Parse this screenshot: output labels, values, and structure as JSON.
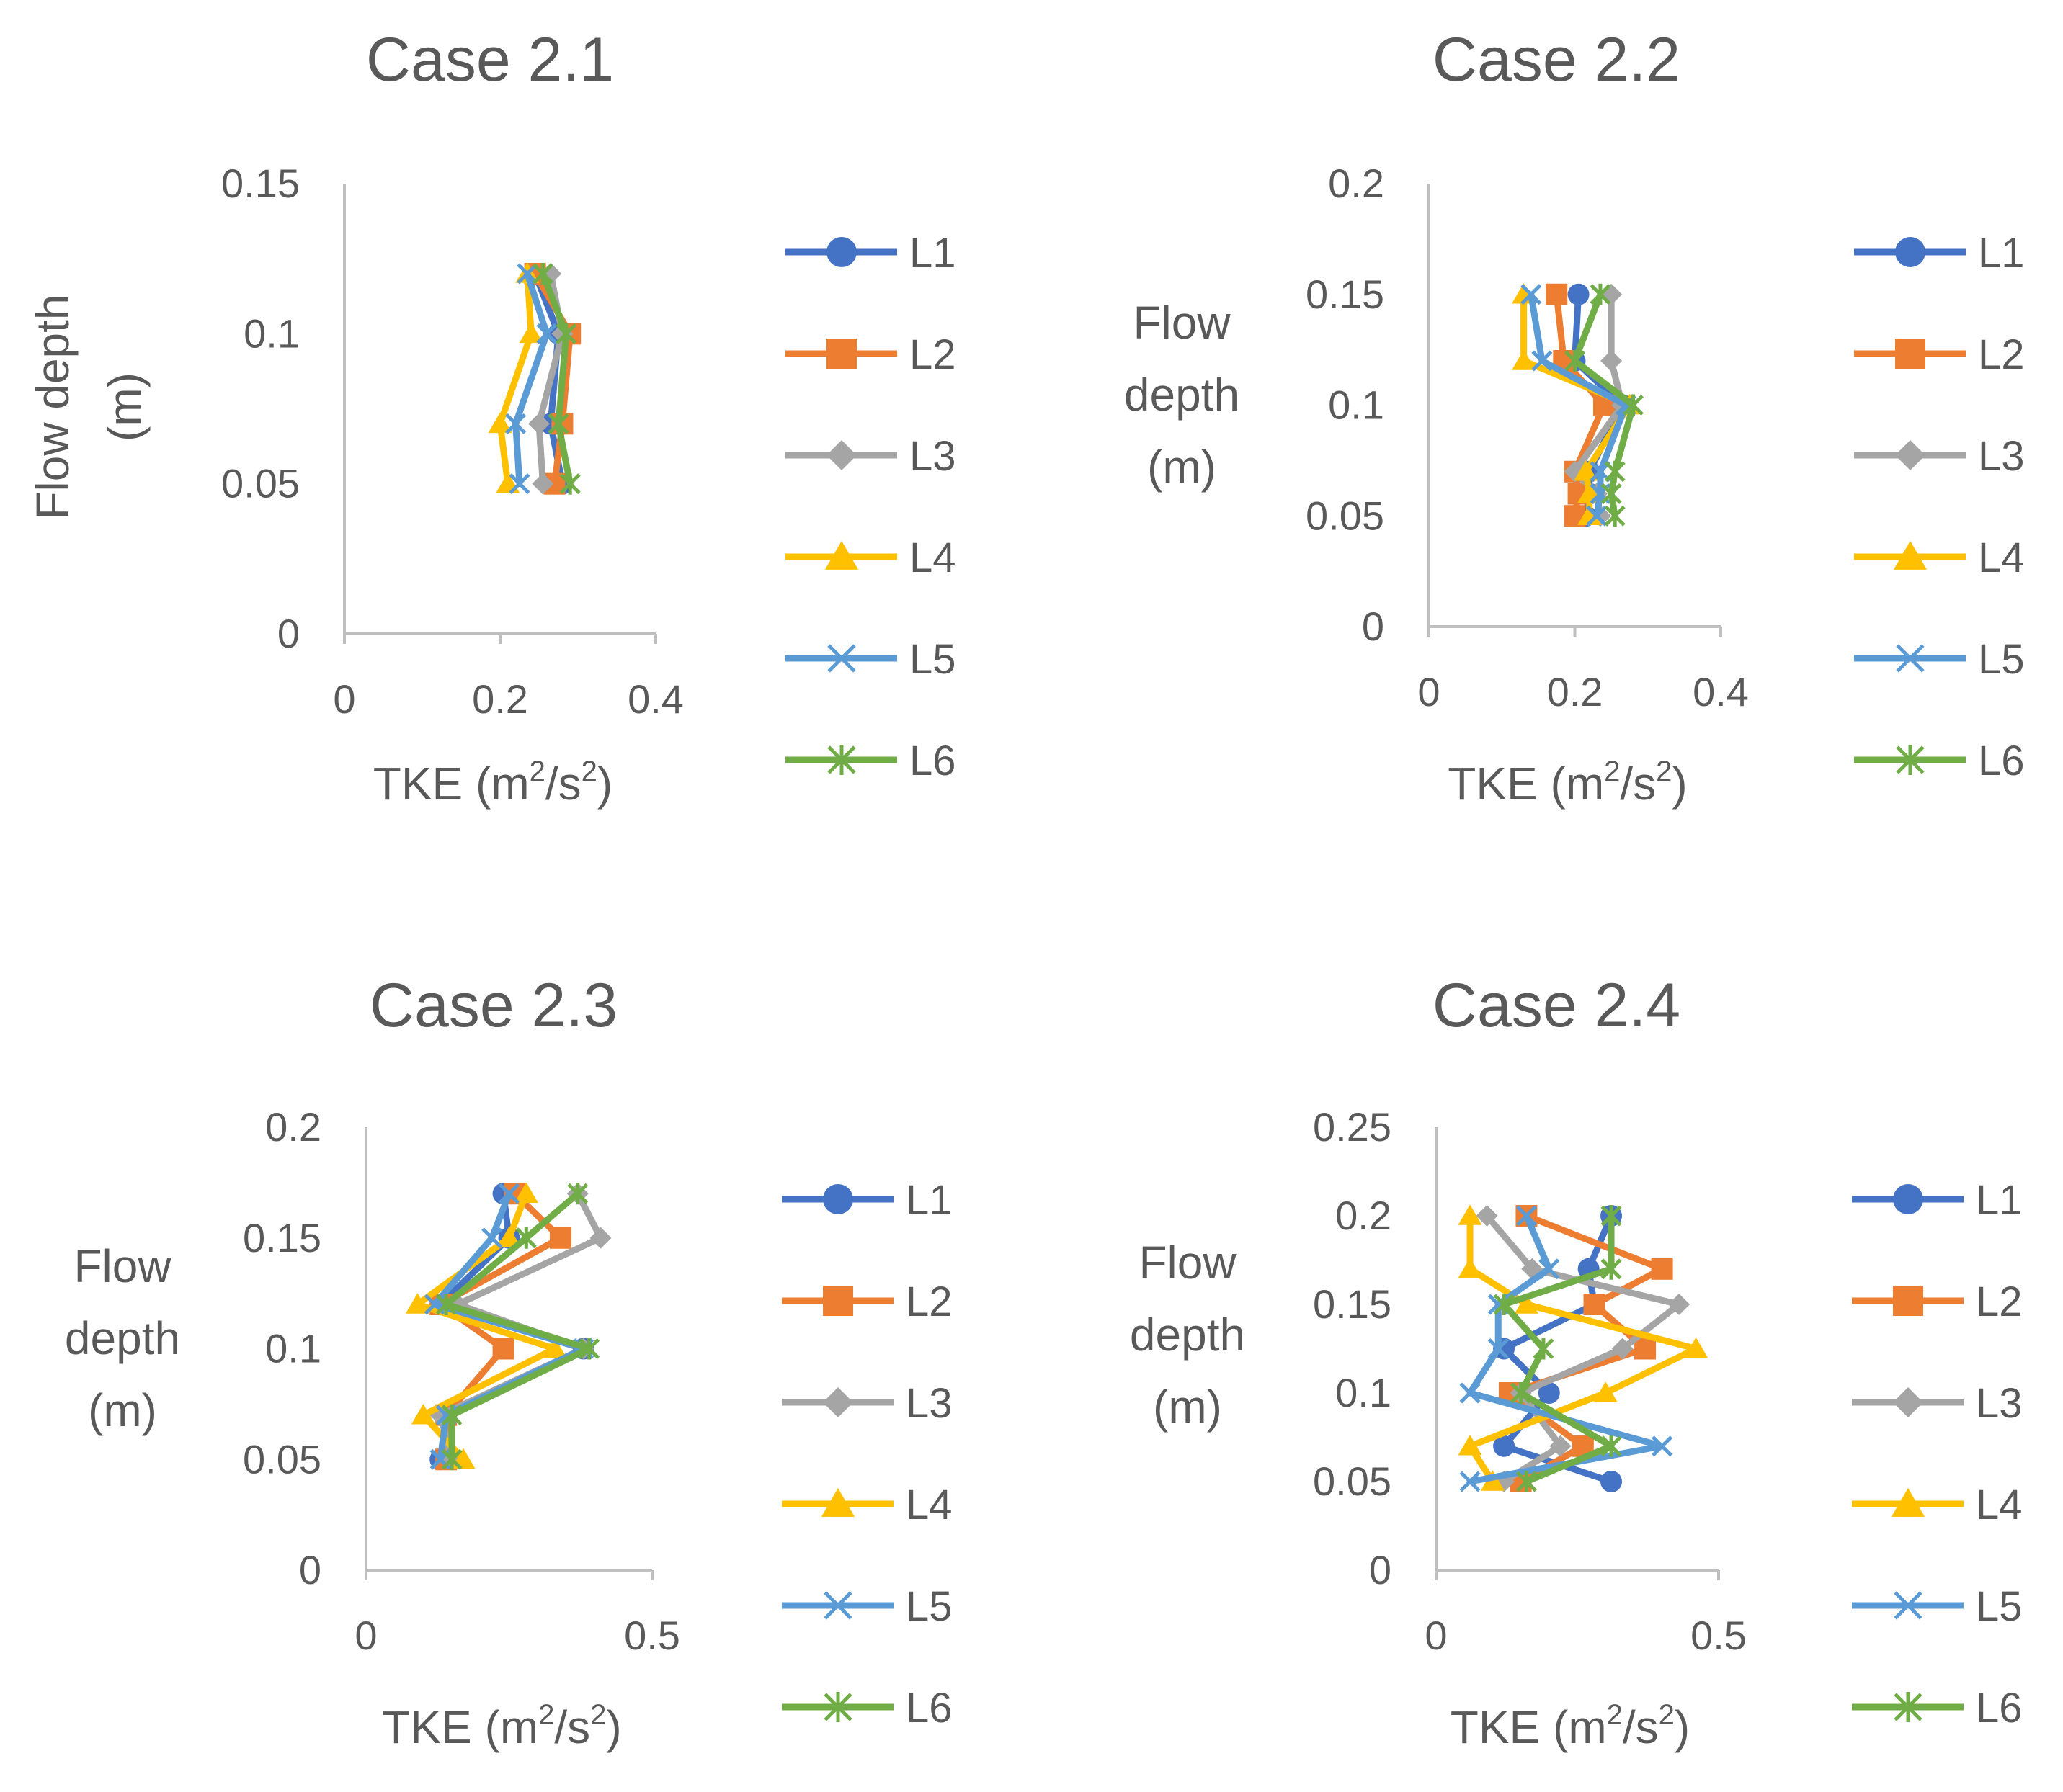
{
  "figure": {
    "background": "#ffffff",
    "text_color": "#595959",
    "axis_color": "#bfbfbf"
  },
  "series_style": [
    {
      "name": "L1",
      "color": "#4472C4",
      "marker": "circle"
    },
    {
      "name": "L2",
      "color": "#ED7D31",
      "marker": "square"
    },
    {
      "name": "L3",
      "color": "#A5A5A5",
      "marker": "diamond"
    },
    {
      "name": "L4",
      "color": "#FFC000",
      "marker": "triangle"
    },
    {
      "name": "L5",
      "color": "#5B9BD5",
      "marker": "x"
    },
    {
      "name": "L6",
      "color": "#70AD47",
      "marker": "star"
    }
  ],
  "chart_data": [
    {
      "type": "line",
      "title": "Case 2.1",
      "xlabel": "TKE (m",
      "xlabel_sup1": "2",
      "xlabel_mid": "/s",
      "xlabel_sup2": "2",
      "xlabel_end": ")",
      "ylabel_lines": [
        "Flow depth",
        "(m)"
      ],
      "ylabel_rotated": true,
      "xlim": [
        0,
        0.4
      ],
      "ylim": [
        0,
        0.15
      ],
      "xticks": [
        "0",
        "0.2",
        "0.4"
      ],
      "yticks": [
        "0",
        "0.05",
        "0.1",
        "0.15"
      ],
      "series": [
        {
          "name": "L1",
          "x": [
            0.28,
            0.265,
            0.275,
            0.245
          ],
          "y": [
            0.05,
            0.07,
            0.1,
            0.12
          ]
        },
        {
          "name": "L2",
          "x": [
            0.27,
            0.28,
            0.29,
            0.245
          ],
          "y": [
            0.05,
            0.07,
            0.1,
            0.12
          ]
        },
        {
          "name": "L3",
          "x": [
            0.255,
            0.25,
            0.28,
            0.265
          ],
          "y": [
            0.05,
            0.07,
            0.1,
            0.12
          ]
        },
        {
          "name": "L4",
          "x": [
            0.21,
            0.2,
            0.24,
            0.235
          ],
          "y": [
            0.05,
            0.07,
            0.1,
            0.12
          ]
        },
        {
          "name": "L5",
          "x": [
            0.225,
            0.22,
            0.26,
            0.235
          ],
          "y": [
            0.05,
            0.07,
            0.1,
            0.12
          ]
        },
        {
          "name": "L6",
          "x": [
            0.29,
            0.275,
            0.285,
            0.255
          ],
          "y": [
            0.05,
            0.07,
            0.1,
            0.12
          ]
        }
      ]
    },
    {
      "type": "line",
      "title": "Case 2.2",
      "xlabel": "TKE (m",
      "xlabel_sup1": "2",
      "xlabel_mid": "/s",
      "xlabel_sup2": "2",
      "xlabel_end": ")",
      "ylabel_lines": [
        "Flow",
        "depth",
        "(m)"
      ],
      "ylabel_rotated": false,
      "xlim": [
        0,
        0.4
      ],
      "ylim": [
        0,
        0.2
      ],
      "xticks": [
        "0",
        "0.2",
        "0.4"
      ],
      "yticks": [
        "0",
        "0.05",
        "0.1",
        "0.15",
        "0.2"
      ],
      "series": [
        {
          "name": "L1",
          "x": [
            0.215,
            0.22,
            0.22,
            0.265,
            0.2,
            0.205
          ],
          "y": [
            0.05,
            0.06,
            0.07,
            0.1,
            0.12,
            0.15
          ]
        },
        {
          "name": "L2",
          "x": [
            0.2,
            0.205,
            0.2,
            0.24,
            0.185,
            0.175
          ],
          "y": [
            0.05,
            0.06,
            0.07,
            0.1,
            0.12,
            0.15
          ]
        },
        {
          "name": "L3",
          "x": [
            0.235,
            0.23,
            0.2,
            0.265,
            0.25,
            0.25
          ],
          "y": [
            0.05,
            0.06,
            0.07,
            0.1,
            0.12,
            0.15
          ]
        },
        {
          "name": "L4",
          "x": [
            0.22,
            0.22,
            0.215,
            0.275,
            0.13,
            0.13
          ],
          "y": [
            0.05,
            0.06,
            0.07,
            0.1,
            0.12,
            0.15
          ]
        },
        {
          "name": "L5",
          "x": [
            0.23,
            0.235,
            0.235,
            0.27,
            0.155,
            0.14
          ],
          "y": [
            0.05,
            0.06,
            0.07,
            0.1,
            0.12,
            0.15
          ]
        },
        {
          "name": "L6",
          "x": [
            0.255,
            0.25,
            0.255,
            0.28,
            0.2,
            0.235
          ],
          "y": [
            0.05,
            0.06,
            0.07,
            0.1,
            0.12,
            0.15
          ]
        }
      ]
    },
    {
      "type": "line",
      "title": "Case 2.3",
      "xlabel": "TKE (m",
      "xlabel_sup1": "2",
      "xlabel_mid": "/s",
      "xlabel_sup2": "2",
      "xlabel_end": ")",
      "ylabel_lines": [
        "Flow",
        "depth",
        "(m)"
      ],
      "ylabel_rotated": false,
      "xlim": [
        0,
        0.5
      ],
      "ylim": [
        0,
        0.2
      ],
      "xticks": [
        "0",
        "0.5"
      ],
      "yticks": [
        "0",
        "0.05",
        "0.1",
        "0.15",
        "0.2"
      ],
      "series": [
        {
          "name": "L1",
          "x": [
            0.13,
            0.14,
            0.38,
            0.13,
            0.25,
            0.24
          ],
          "y": [
            0.05,
            0.07,
            0.1,
            0.12,
            0.15,
            0.17
          ]
        },
        {
          "name": "L2",
          "x": [
            0.14,
            0.14,
            0.24,
            0.13,
            0.34,
            0.26
          ],
          "y": [
            0.05,
            0.07,
            0.1,
            0.12,
            0.15,
            0.17
          ]
        },
        {
          "name": "L3",
          "x": [
            0.15,
            0.13,
            0.38,
            0.16,
            0.41,
            0.37
          ],
          "y": [
            0.05,
            0.07,
            0.1,
            0.12,
            0.15,
            0.17
          ]
        },
        {
          "name": "L4",
          "x": [
            0.17,
            0.1,
            0.33,
            0.09,
            0.25,
            0.28
          ],
          "y": [
            0.05,
            0.07,
            0.1,
            0.12,
            0.15,
            0.17
          ]
        },
        {
          "name": "L5",
          "x": [
            0.13,
            0.14,
            0.38,
            0.12,
            0.22,
            0.25
          ],
          "y": [
            0.05,
            0.07,
            0.1,
            0.12,
            0.15,
            0.17
          ]
        },
        {
          "name": "L6",
          "x": [
            0.15,
            0.15,
            0.39,
            0.14,
            0.28,
            0.37
          ],
          "y": [
            0.05,
            0.07,
            0.1,
            0.12,
            0.15,
            0.17
          ]
        }
      ]
    },
    {
      "type": "line",
      "title": "Case 2.4",
      "xlabel": "TKE (m",
      "xlabel_sup1": "2",
      "xlabel_mid": "/s",
      "xlabel_sup2": "2",
      "xlabel_end": ")",
      "ylabel_lines": [
        "Flow",
        "depth",
        "(m)"
      ],
      "ylabel_rotated": false,
      "xlim": [
        0,
        0.5
      ],
      "ylim": [
        0,
        0.25
      ],
      "xticks": [
        "0",
        "0.5"
      ],
      "yticks": [
        "0",
        "0.05",
        "0.1",
        "0.15",
        "0.2",
        "0.25"
      ],
      "series": [
        {
          "name": "L1",
          "x": [
            0.31,
            0.12,
            0.2,
            0.12,
            0.28,
            0.27,
            0.31
          ],
          "y": [
            0.05,
            0.07,
            0.1,
            0.125,
            0.15,
            0.17,
            0.2
          ]
        },
        {
          "name": "L2",
          "x": [
            0.15,
            0.26,
            0.13,
            0.37,
            0.28,
            0.4,
            0.16
          ],
          "y": [
            0.05,
            0.07,
            0.1,
            0.125,
            0.15,
            0.17,
            0.2
          ]
        },
        {
          "name": "L3",
          "x": [
            0.12,
            0.22,
            0.15,
            0.33,
            0.43,
            0.17,
            0.09
          ],
          "y": [
            0.05,
            0.07,
            0.1,
            0.125,
            0.15,
            0.17,
            0.2
          ]
        },
        {
          "name": "L4",
          "x": [
            0.1,
            0.06,
            0.3,
            0.46,
            0.16,
            0.06,
            0.06
          ],
          "y": [
            0.05,
            0.07,
            0.1,
            0.125,
            0.15,
            0.17,
            0.2
          ]
        },
        {
          "name": "L5",
          "x": [
            0.06,
            0.4,
            0.06,
            0.11,
            0.11,
            0.2,
            0.16
          ],
          "y": [
            0.05,
            0.07,
            0.1,
            0.125,
            0.15,
            0.17,
            0.2
          ]
        },
        {
          "name": "L6",
          "x": [
            0.16,
            0.31,
            0.15,
            0.19,
            0.12,
            0.31,
            0.31
          ],
          "y": [
            0.05,
            0.07,
            0.1,
            0.125,
            0.15,
            0.17,
            0.2
          ]
        }
      ]
    }
  ]
}
